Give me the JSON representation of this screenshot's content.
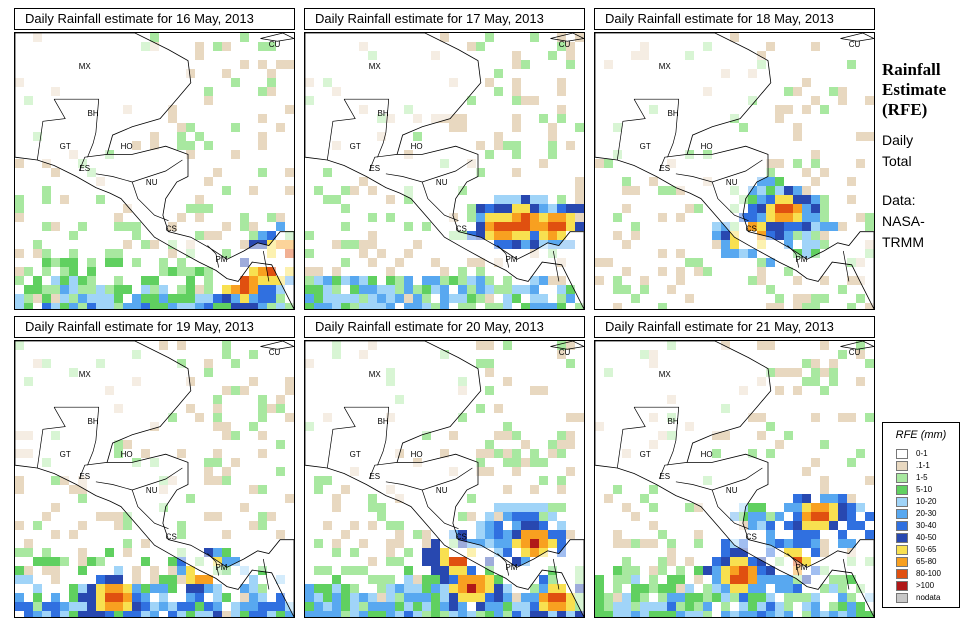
{
  "title": [
    "Rainfall",
    "Estimate",
    "(RFE)"
  ],
  "subtitle": [
    "Daily",
    "Total"
  ],
  "source": [
    "Data:",
    "NASA-",
    "TRMM"
  ],
  "panels": [
    {
      "title": "Daily Rainfall estimate for  16 May, 2013",
      "seed": 1,
      "pattern": "south",
      "hotspots": [
        [
          0.93,
          0.84
        ],
        [
          0.97,
          0.78
        ],
        [
          0.82,
          0.9
        ]
      ]
    },
    {
      "title": "Daily Rainfall estimate for  17 May, 2013",
      "seed": 2,
      "pattern": "costa",
      "hotspots": [
        [
          0.78,
          0.68
        ],
        [
          0.7,
          0.7
        ],
        [
          0.9,
          0.69
        ]
      ]
    },
    {
      "title": "Daily Rainfall estimate for  18 May, 2013",
      "seed": 3,
      "pattern": "light",
      "hotspots": [
        [
          0.68,
          0.64
        ],
        [
          0.55,
          0.73
        ]
      ]
    },
    {
      "title": "Daily Rainfall estimate for  19 May, 2013",
      "seed": 4,
      "pattern": "southband",
      "hotspots": [
        [
          0.36,
          0.92
        ],
        [
          0.68,
          0.82
        ]
      ]
    },
    {
      "title": "Daily Rainfall estimate for  20 May, 2013",
      "seed": 5,
      "pattern": "costa2",
      "hotspots": [
        [
          0.55,
          0.78
        ],
        [
          0.82,
          0.72
        ],
        [
          0.9,
          0.93
        ],
        [
          0.6,
          0.88
        ]
      ]
    },
    {
      "title": "Daily Rainfall estimate for  21 May, 2013",
      "seed": 6,
      "pattern": "band",
      "hotspots": [
        [
          0.52,
          0.84
        ],
        [
          0.7,
          0.8
        ],
        [
          0.8,
          0.62
        ]
      ]
    }
  ],
  "country_labels": [
    "MX",
    "BH",
    "GT",
    "HO",
    "ES",
    "NU",
    "CS",
    "PM",
    "CU"
  ],
  "legend": {
    "title": "RFE (mm)",
    "classes": [
      {
        "label": "0-1",
        "color": "#ffffff"
      },
      {
        "label": ".1-1",
        "color": "#e8d8c0"
      },
      {
        "label": "1-5",
        "color": "#a8e8a0"
      },
      {
        "label": "5-10",
        "color": "#60d060"
      },
      {
        "label": "10-20",
        "color": "#a0d4f8"
      },
      {
        "label": "20-30",
        "color": "#58a8f0"
      },
      {
        "label": "30-40",
        "color": "#3070e0"
      },
      {
        "label": "40-50",
        "color": "#2848b0"
      },
      {
        "label": "50-65",
        "color": "#f8e050"
      },
      {
        "label": "65-80",
        "color": "#f8a020"
      },
      {
        "label": "80-100",
        "color": "#e05010"
      },
      {
        "label": ">100",
        "color": "#b01818"
      },
      {
        "label": "nodata",
        "color": "#c8c8c8"
      }
    ]
  }
}
